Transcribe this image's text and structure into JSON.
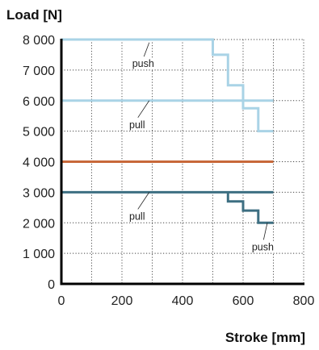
{
  "chart_data": {
    "type": "line",
    "ylabel": "Load [N]",
    "xlabel": "Stroke [mm]",
    "xlim": [
      0,
      800
    ],
    "ylim": [
      0,
      8000
    ],
    "x_ticks": [
      "0",
      "200",
      "400",
      "600",
      "800"
    ],
    "y_ticks": [
      "0",
      "1 000",
      "2 000",
      "3 000",
      "4 000",
      "5 000",
      "6 000",
      "7 000",
      "8 000"
    ],
    "grid": "dotted",
    "series": [
      {
        "color": "#a9d3e6",
        "points": [
          [
            0,
            8000
          ],
          [
            500,
            8000
          ],
          [
            500,
            7500
          ],
          [
            550,
            7500
          ],
          [
            550,
            6500
          ],
          [
            600,
            6500
          ],
          [
            600,
            5750
          ],
          [
            650,
            5750
          ],
          [
            650,
            5000
          ],
          [
            700,
            5000
          ]
        ]
      },
      {
        "color": "#a9d3e6",
        "points": [
          [
            0,
            6000
          ],
          [
            700,
            6000
          ]
        ]
      },
      {
        "color": "#c8683a",
        "points": [
          [
            0,
            4000
          ],
          [
            700,
            4000
          ]
        ]
      },
      {
        "color": "#3d6f82",
        "points": [
          [
            0,
            3000
          ],
          [
            700,
            3000
          ]
        ]
      },
      {
        "color": "#3d6f82",
        "points": [
          [
            550,
            3000
          ],
          [
            550,
            2700
          ],
          [
            600,
            2700
          ],
          [
            600,
            2400
          ],
          [
            650,
            2400
          ],
          [
            650,
            2000
          ],
          [
            700,
            2000
          ]
        ]
      }
    ],
    "annotations": [
      {
        "text": "push",
        "x": 270,
        "y": 7100,
        "pointer_to": [
          290,
          7900
        ]
      },
      {
        "text": "pull",
        "x": 250,
        "y": 5100,
        "pointer_to": [
          290,
          6000
        ]
      },
      {
        "text": "pull",
        "x": 250,
        "y": 2100,
        "pointer_to": [
          290,
          3000
        ]
      },
      {
        "text": "push",
        "x": 665,
        "y": 1100,
        "pointer_to": [
          680,
          2000
        ]
      }
    ]
  }
}
